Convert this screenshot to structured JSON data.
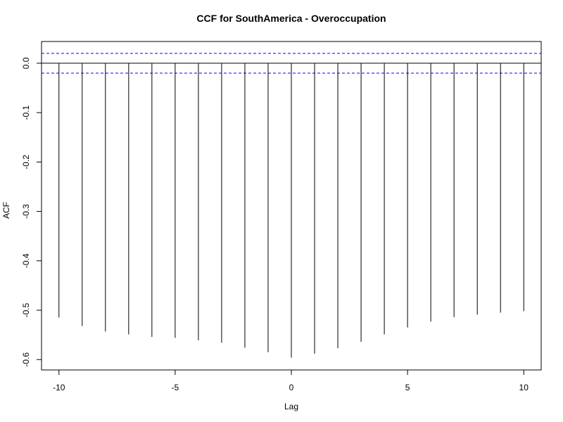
{
  "chart_data": {
    "type": "bar",
    "title": "CCF for SouthAmerica - Overoccupation",
    "xlabel": "Lag",
    "ylabel": "ACF",
    "x": [
      -10,
      -9,
      -8,
      -7,
      -6,
      -5,
      -4,
      -3,
      -2,
      -1,
      0,
      1,
      2,
      3,
      4,
      5,
      6,
      7,
      8,
      9,
      10
    ],
    "values": [
      -0.515,
      -0.532,
      -0.543,
      -0.549,
      -0.554,
      -0.556,
      -0.561,
      -0.566,
      -0.576,
      -0.585,
      -0.596,
      -0.588,
      -0.577,
      -0.564,
      -0.549,
      -0.535,
      -0.523,
      -0.514,
      -0.509,
      -0.505,
      -0.502
    ],
    "xlim": [
      -10.75,
      10.75
    ],
    "ylim": [
      -0.621,
      0.044
    ],
    "x_ticks": [
      -10,
      -5,
      0,
      5,
      10
    ],
    "y_ticks": [
      0.0,
      -0.1,
      -0.2,
      -0.3,
      -0.4,
      -0.5,
      -0.6
    ],
    "x_tick_labels": [
      "-10",
      "-5",
      "0",
      "5",
      "10"
    ],
    "y_tick_labels": [
      "0.0",
      "-0.1",
      "-0.2",
      "-0.3",
      "-0.4",
      "-0.5",
      "-0.6"
    ],
    "confidence_bounds": [
      0.02,
      -0.02
    ],
    "bar_color": "#000000",
    "confidence_color": "#0000ff",
    "grid": false
  }
}
